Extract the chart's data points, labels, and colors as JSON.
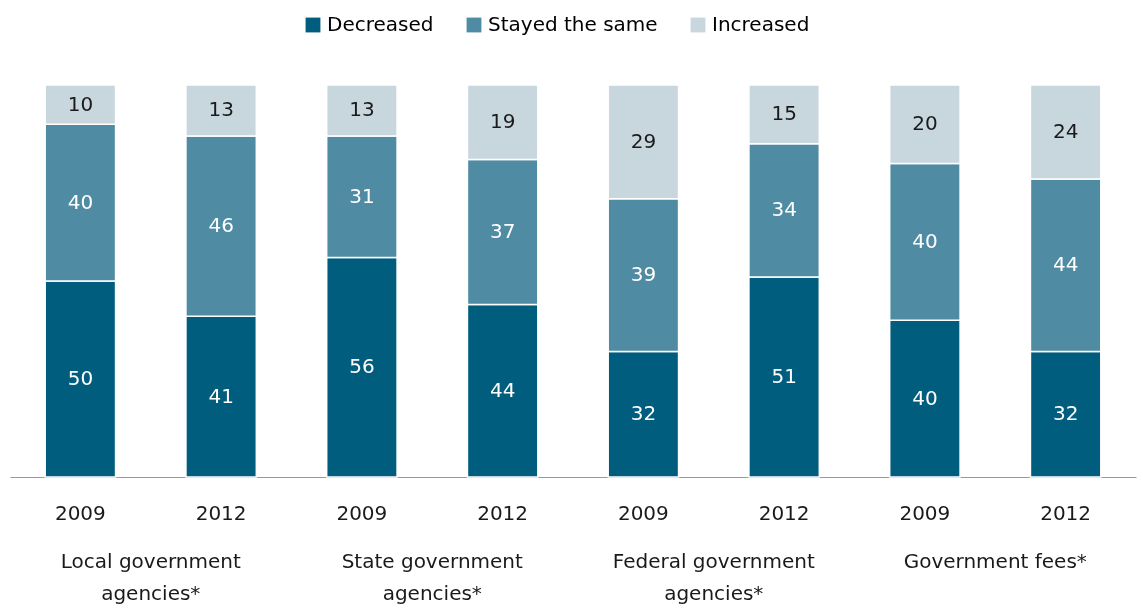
{
  "chart_data": {
    "type": "bar",
    "stacked": true,
    "categories": [
      "2009",
      "2012",
      "2009",
      "2012",
      "2009",
      "2012",
      "2009",
      "2012"
    ],
    "series": [
      {
        "name": "Decreased",
        "color": "#005d7e",
        "values": [
          50,
          41,
          56,
          44,
          32,
          51,
          40,
          32
        ]
      },
      {
        "name": "Stayed the same",
        "color": "#4f8ba3",
        "values": [
          40,
          46,
          31,
          37,
          39,
          34,
          40,
          44
        ]
      },
      {
        "name": "Increased",
        "color": "#c8d6de",
        "values": [
          10,
          13,
          13,
          19,
          29,
          15,
          20,
          24
        ]
      }
    ],
    "ylim": [
      0,
      100
    ],
    "tick_labels": "x",
    "data_labels": true,
    "legend": "top",
    "annotations": [
      "Local government agencies*",
      "State government agencies*",
      "Federal government agencies*",
      "Government fees*"
    ]
  }
}
